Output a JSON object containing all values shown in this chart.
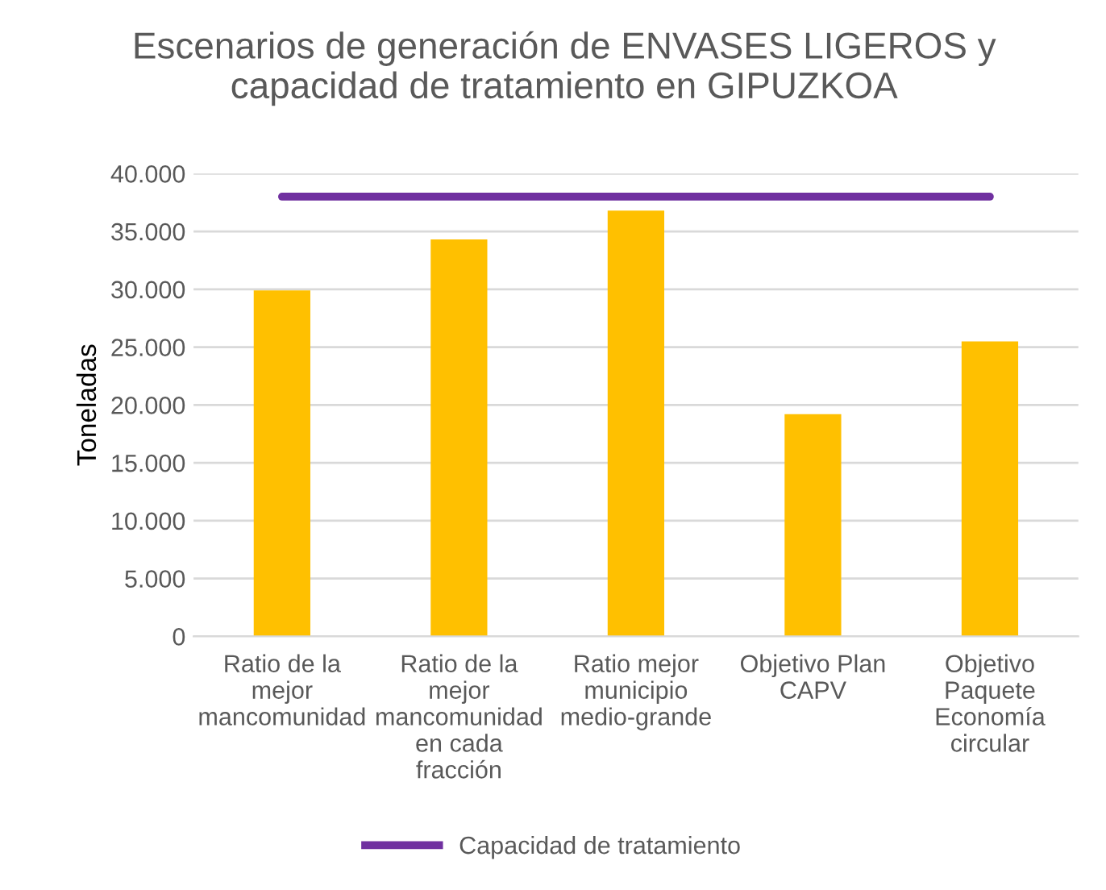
{
  "chart_data": {
    "type": "bar",
    "title": "Escenarios de generación de ENVASES LIGEROS y\ncapacidad de tratamiento en GIPUZKOA",
    "ylabel": "Toneladas",
    "categories": [
      "Ratio de la\nmejor\nmancomunidad",
      "Ratio de la\nmejor\nmancomunidad\nen cada\nfracción",
      "Ratio mejor\nmunicipio\nmedio-grande",
      "Objetivo Plan\nCAPV",
      "Objetivo\nPaquete\nEconomía\ncircular"
    ],
    "series": [
      {
        "color": "#ffc000",
        "values": [
          29900,
          34300,
          36800,
          19200,
          25500
        ]
      },
      {
        "type": "line",
        "name": "Capacidad de tratamiento",
        "color": "#7030a0",
        "values": [
          38000,
          38000,
          38000,
          38000,
          38000
        ]
      }
    ],
    "ylim": [
      0,
      40000
    ],
    "yticks": [
      0,
      {
        "value": 5000,
        "label": "5.000"
      },
      {
        "value": 10000,
        "label": "10.000"
      },
      {
        "value": 15000,
        "label": "15.000"
      },
      {
        "value": 20000,
        "label": "20.000"
      },
      {
        "value": 25000,
        "label": "25.000"
      },
      {
        "value": 30000,
        "label": "30.000"
      },
      {
        "value": 35000,
        "label": "35.000"
      },
      {
        "value": 40000,
        "label": "40.000"
      }
    ],
    "grid": "y",
    "legend": "bottom",
    "marker": "none",
    "line_style": "solid"
  }
}
